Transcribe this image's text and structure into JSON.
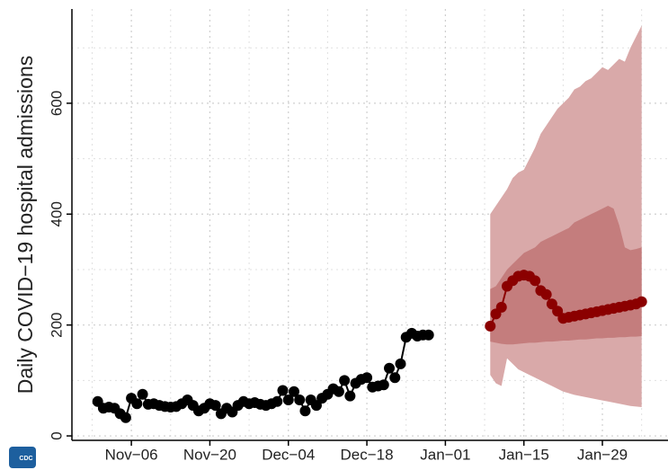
{
  "chart_data": {
    "type": "line",
    "y_label": "Daily COVID−19 hospital admissions",
    "xlim": [
      -10.6,
      95.7
    ],
    "xticks": [
      {
        "value": 0,
        "label": "Nov−06"
      },
      {
        "value": 14,
        "label": "Nov−20"
      },
      {
        "value": 28,
        "label": "Dec−04"
      },
      {
        "value": 42,
        "label": "Dec−18"
      },
      {
        "value": 56,
        "label": "Jan−01"
      },
      {
        "value": 70,
        "label": "Jan−15"
      },
      {
        "value": 84,
        "label": "Jan−29"
      }
    ],
    "xminorticks": [
      -7,
      7,
      21,
      35,
      49,
      63,
      77,
      91
    ],
    "ylim": [
      -8,
      770
    ],
    "yticks": [
      0,
      200,
      400,
      600
    ],
    "yminorticks": [
      100,
      300,
      500,
      700
    ],
    "grid": true,
    "series": [
      {
        "color": "#000000",
        "x": [
          -6,
          -5,
          -4,
          -3,
          -2,
          -1,
          0,
          1,
          2,
          3,
          4,
          5,
          6,
          7,
          8,
          9,
          10,
          11,
          12,
          13,
          14,
          15,
          16,
          17,
          18,
          19,
          20,
          21,
          22,
          23,
          24,
          25,
          26,
          27,
          28,
          29,
          30,
          31,
          32,
          33,
          34,
          35,
          36,
          37,
          38,
          39,
          40,
          41,
          42,
          43,
          44,
          45,
          46,
          47,
          48,
          49,
          50,
          51,
          52,
          53
        ],
        "values": [
          62,
          50,
          52,
          50,
          40,
          33,
          68,
          58,
          75,
          57,
          58,
          55,
          53,
          52,
          53,
          58,
          65,
          55,
          45,
          50,
          58,
          55,
          40,
          50,
          43,
          55,
          62,
          58,
          60,
          57,
          55,
          58,
          62,
          82,
          65,
          80,
          65,
          45,
          65,
          55,
          68,
          75,
          85,
          80,
          100,
          72,
          95,
          102,
          105,
          88,
          90,
          92,
          122,
          105,
          130,
          178,
          185,
          180,
          182,
          182
        ]
      },
      {
        "color": "#8b0000",
        "x": [
          64,
          65,
          66,
          67,
          68,
          69,
          70,
          71,
          72,
          73,
          74,
          75,
          76,
          77,
          78,
          79,
          80,
          81,
          82,
          83,
          84,
          85,
          86,
          87,
          88,
          89,
          90,
          91
        ],
        "values": [
          198,
          220,
          232,
          270,
          280,
          288,
          290,
          288,
          280,
          262,
          255,
          238,
          225,
          212,
          214,
          216,
          218,
          220,
          222,
          224,
          226,
          228,
          230,
          232,
          234,
          236,
          238,
          242
        ]
      }
    ],
    "bands": [
      {
        "color": "#d9a9a9",
        "x": [
          64,
          65,
          66,
          67,
          68,
          69,
          70,
          71,
          72,
          73,
          74,
          75,
          76,
          77,
          78,
          79,
          80,
          81,
          82,
          83,
          84,
          85,
          86,
          87,
          88,
          89,
          90,
          91
        ],
        "upper": [
          400,
          415,
          430,
          445,
          465,
          475,
          480,
          500,
          520,
          545,
          560,
          575,
          590,
          600,
          610,
          625,
          630,
          640,
          645,
          655,
          665,
          660,
          670,
          680,
          675,
          700,
          720,
          740
        ],
        "lower": [
          110,
          95,
          90,
          140,
          130,
          120,
          115,
          110,
          105,
          100,
          95,
          90,
          85,
          80,
          77,
          74,
          72,
          70,
          68,
          66,
          64,
          62,
          60,
          58,
          56,
          54,
          53,
          52
        ]
      },
      {
        "color": "#c47d7d",
        "x": [
          64,
          65,
          66,
          67,
          68,
          69,
          70,
          71,
          72,
          73,
          74,
          75,
          76,
          77,
          78,
          79,
          80,
          81,
          82,
          83,
          84,
          85,
          86,
          87,
          88,
          89,
          90,
          91
        ],
        "upper": [
          265,
          270,
          285,
          300,
          310,
          320,
          330,
          335,
          340,
          350,
          355,
          360,
          365,
          370,
          375,
          385,
          390,
          395,
          400,
          405,
          410,
          415,
          410,
          380,
          340,
          335,
          337,
          340
        ],
        "lower": [
          170,
          168,
          166,
          165,
          165,
          166,
          167,
          168,
          168,
          169,
          170,
          170,
          171,
          172,
          172,
          173,
          174,
          174,
          175,
          176,
          176,
          177,
          177,
          178,
          178,
          179,
          179,
          180
        ]
      }
    ]
  },
  "logo": {
    "text": "CDC"
  }
}
